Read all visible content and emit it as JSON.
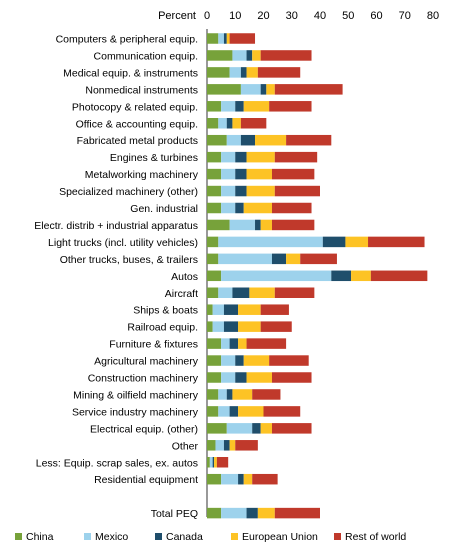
{
  "chart_data": {
    "type": "bar",
    "stacked": true,
    "orientation": "horizontal",
    "xlabel": "Percent",
    "xlim": [
      0,
      80
    ],
    "xticks": [
      0,
      10,
      20,
      30,
      40,
      50,
      60,
      70,
      80
    ],
    "grid": false,
    "legend_position": "bottom",
    "categories": [
      "Computers & peripheral equip.",
      "Communication equip.",
      "Medical equip. & instruments",
      "Nonmedical instruments",
      "Photocopy & related equip.",
      "Office & accounting equip.",
      "Fabricated metal products",
      "Engines & turbines",
      "Metalworking machinery",
      "Specialized machinery (other)",
      "Gen. industrial",
      "Electr. distrib + industrial apparatus",
      "Light trucks (incl. utility vehicles)",
      "Other trucks, buses, & trailers",
      "Autos",
      "Aircraft",
      "Ships & boats",
      "Railroad equip.",
      "Furniture & fixtures",
      "Agricultural machinery",
      "Construction machinery",
      "Mining & oilfield machinery",
      "Service industry machinery",
      "Electrical equip. (other)",
      "Other",
      "Less: Equip. scrap sales, ex. autos",
      "Residential equipment",
      "",
      "Total PEQ"
    ],
    "series": [
      {
        "name": "China",
        "color": "#77a23a",
        "values": [
          4,
          9,
          8,
          12,
          5,
          4,
          7,
          5,
          5,
          5,
          5,
          8,
          4,
          4,
          5,
          4,
          2,
          2,
          5,
          5,
          5,
          4,
          4,
          7,
          3,
          1,
          5,
          null,
          5
        ]
      },
      {
        "name": "Mexico",
        "color": "#9dd2ec",
        "values": [
          2,
          5,
          4,
          7,
          5,
          3,
          5,
          5,
          5,
          5,
          5,
          9,
          37,
          19,
          39,
          5,
          4,
          4,
          3,
          5,
          5,
          3,
          4,
          9,
          3,
          1,
          6,
          null,
          9
        ]
      },
      {
        "name": "Canada",
        "color": "#1f4e6b",
        "values": [
          1,
          2,
          2,
          2,
          3,
          2,
          5,
          4,
          4,
          4,
          3,
          2,
          8,
          5,
          7,
          6,
          5,
          5,
          3,
          3,
          4,
          2,
          3,
          3,
          2,
          0.5,
          2,
          null,
          4
        ]
      },
      {
        "name": "European Union",
        "color": "#fdc325",
        "values": [
          1,
          3,
          4,
          3,
          9,
          3,
          11,
          10,
          9,
          10,
          10,
          4,
          8,
          5,
          7,
          9,
          8,
          8,
          3,
          9,
          9,
          7,
          9,
          4,
          2,
          1,
          3,
          null,
          6
        ]
      },
      {
        "name": "Rest of world",
        "color": "#c0392b",
        "values": [
          9,
          18,
          15,
          24,
          15,
          9,
          16,
          15,
          15,
          16,
          14,
          15,
          20,
          13,
          20,
          14,
          10,
          11,
          14,
          14,
          14,
          10,
          13,
          14,
          8,
          4,
          9,
          null,
          16
        ]
      }
    ]
  }
}
